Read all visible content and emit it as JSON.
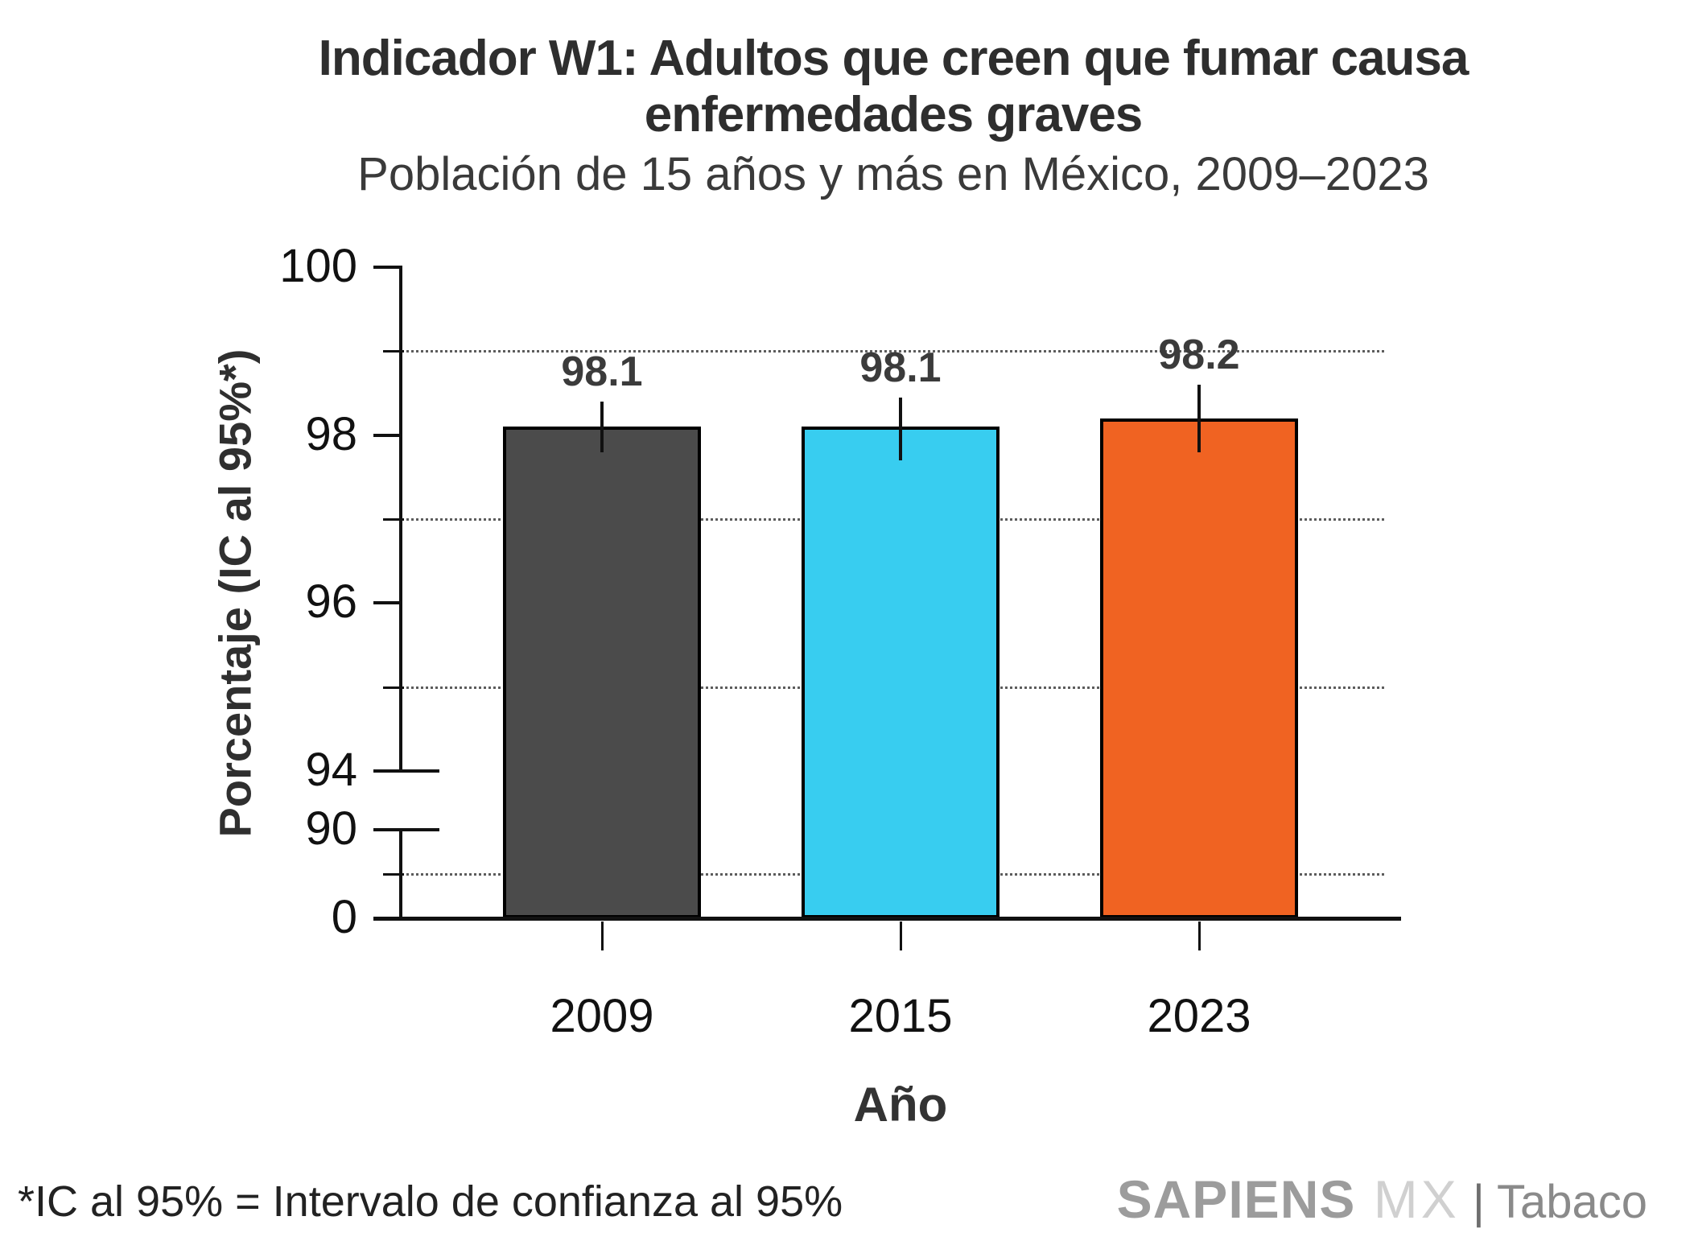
{
  "chart_data": {
    "type": "bar",
    "title_line1": "Indicador W1: Adultos que creen que fumar causa",
    "title_line2": "enfermedades graves",
    "subtitle": "Población de 15 años y más en México, 2009–2023",
    "xlabel": "Año",
    "ylabel": "Porcentaje (IC al 95%*)",
    "categories": [
      "2009",
      "2015",
      "2023"
    ],
    "values": [
      98.1,
      98.1,
      98.2
    ],
    "value_labels": [
      "98.1",
      "98.1",
      "98.2"
    ],
    "ci_low": [
      97.8,
      97.7,
      97.8
    ],
    "ci_high": [
      98.4,
      98.45,
      98.6
    ],
    "bar_colors": [
      "#4b4b4b",
      "#38cdf0",
      "#f06322"
    ],
    "y_major_ticks": [
      0,
      90,
      94,
      96,
      98,
      100
    ],
    "y_major_tick_labels": [
      "0",
      "90",
      "94",
      "96",
      "98",
      "100"
    ],
    "y_minor_dotted_ticks": [
      45,
      95,
      97,
      99
    ],
    "axis_break_between": [
      90,
      94
    ],
    "ylim": [
      0,
      100
    ],
    "grid": "dotted horizontal gridlines at minor ticks only",
    "legend": "none",
    "error_bar_style": "vertical line, no caps"
  },
  "footnote": "*IC al 95% = Intervalo de confianza al 95%",
  "branding": {
    "name": "SAPIENS",
    "suffix": "MX",
    "separator": "|",
    "unit": "Tabaco"
  }
}
